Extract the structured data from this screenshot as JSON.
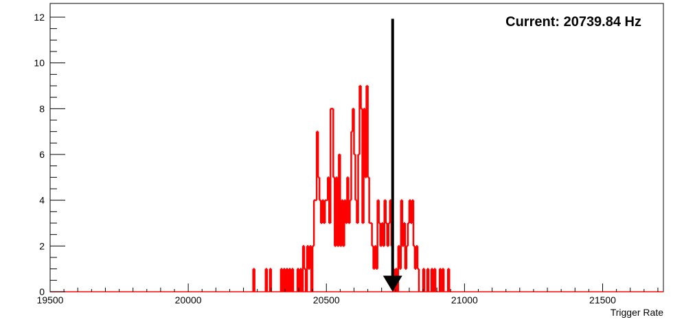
{
  "chart_data": {
    "type": "histogram",
    "title": "",
    "xlabel": "Trigger Rate",
    "ylabel": "",
    "xlim": [
      19500,
      21720
    ],
    "ylim": [
      0,
      12.6
    ],
    "x_ticks": [
      19500,
      20000,
      20500,
      21000,
      21500
    ],
    "y_ticks": [
      0,
      2,
      4,
      6,
      8,
      10,
      12
    ],
    "bin_width": 5,
    "grid": false,
    "line_color": "#ff0000",
    "annotation": "Current: 20739.84 Hz",
    "current_value": 20739.84,
    "arrow_color": "#000000",
    "bins": [
      {
        "x": 20235,
        "y": 1
      },
      {
        "x": 20280,
        "y": 1
      },
      {
        "x": 20295,
        "y": 1
      },
      {
        "x": 20335,
        "y": 1
      },
      {
        "x": 20345,
        "y": 1
      },
      {
        "x": 20355,
        "y": 1
      },
      {
        "x": 20365,
        "y": 1
      },
      {
        "x": 20375,
        "y": 1
      },
      {
        "x": 20395,
        "y": 1
      },
      {
        "x": 20405,
        "y": 1
      },
      {
        "x": 20415,
        "y": 2
      },
      {
        "x": 20420,
        "y": 1
      },
      {
        "x": 20430,
        "y": 2
      },
      {
        "x": 20435,
        "y": 1
      },
      {
        "x": 20440,
        "y": 2
      },
      {
        "x": 20450,
        "y": 2
      },
      {
        "x": 20455,
        "y": 4
      },
      {
        "x": 20460,
        "y": 4
      },
      {
        "x": 20465,
        "y": 7
      },
      {
        "x": 20470,
        "y": 5
      },
      {
        "x": 20475,
        "y": 4
      },
      {
        "x": 20480,
        "y": 3
      },
      {
        "x": 20485,
        "y": 4
      },
      {
        "x": 20490,
        "y": 3
      },
      {
        "x": 20495,
        "y": 4
      },
      {
        "x": 20500,
        "y": 4
      },
      {
        "x": 20505,
        "y": 5
      },
      {
        "x": 20510,
        "y": 3
      },
      {
        "x": 20515,
        "y": 8
      },
      {
        "x": 20520,
        "y": 8
      },
      {
        "x": 20525,
        "y": 5
      },
      {
        "x": 20530,
        "y": 2
      },
      {
        "x": 20535,
        "y": 5
      },
      {
        "x": 20540,
        "y": 2
      },
      {
        "x": 20545,
        "y": 6
      },
      {
        "x": 20550,
        "y": 2
      },
      {
        "x": 20555,
        "y": 4
      },
      {
        "x": 20560,
        "y": 2
      },
      {
        "x": 20565,
        "y": 4
      },
      {
        "x": 20570,
        "y": 3
      },
      {
        "x": 20575,
        "y": 5
      },
      {
        "x": 20580,
        "y": 3
      },
      {
        "x": 20585,
        "y": 4
      },
      {
        "x": 20590,
        "y": 7
      },
      {
        "x": 20595,
        "y": 8
      },
      {
        "x": 20600,
        "y": 6
      },
      {
        "x": 20605,
        "y": 4
      },
      {
        "x": 20610,
        "y": 3
      },
      {
        "x": 20615,
        "y": 6
      },
      {
        "x": 20620,
        "y": 9
      },
      {
        "x": 20625,
        "y": 8
      },
      {
        "x": 20630,
        "y": 3
      },
      {
        "x": 20635,
        "y": 8
      },
      {
        "x": 20640,
        "y": 5
      },
      {
        "x": 20645,
        "y": 9
      },
      {
        "x": 20650,
        "y": 5
      },
      {
        "x": 20655,
        "y": 3
      },
      {
        "x": 20660,
        "y": 3
      },
      {
        "x": 20665,
        "y": 2
      },
      {
        "x": 20670,
        "y": 1
      },
      {
        "x": 20675,
        "y": 2
      },
      {
        "x": 20680,
        "y": 1
      },
      {
        "x": 20685,
        "y": 4
      },
      {
        "x": 20690,
        "y": 3
      },
      {
        "x": 20695,
        "y": 2
      },
      {
        "x": 20700,
        "y": 3
      },
      {
        "x": 20705,
        "y": 2
      },
      {
        "x": 20710,
        "y": 4
      },
      {
        "x": 20715,
        "y": 3
      },
      {
        "x": 20720,
        "y": 2
      },
      {
        "x": 20725,
        "y": 3
      },
      {
        "x": 20730,
        "y": 4
      },
      {
        "x": 20735,
        "y": 2
      },
      {
        "x": 20740,
        "y": 1
      },
      {
        "x": 20750,
        "y": 1
      },
      {
        "x": 20760,
        "y": 2
      },
      {
        "x": 20765,
        "y": 1
      },
      {
        "x": 20770,
        "y": 4
      },
      {
        "x": 20775,
        "y": 2
      },
      {
        "x": 20780,
        "y": 3
      },
      {
        "x": 20785,
        "y": 1
      },
      {
        "x": 20790,
        "y": 2
      },
      {
        "x": 20795,
        "y": 3
      },
      {
        "x": 20800,
        "y": 4
      },
      {
        "x": 20805,
        "y": 3
      },
      {
        "x": 20810,
        "y": 4
      },
      {
        "x": 20815,
        "y": 2
      },
      {
        "x": 20820,
        "y": 1
      },
      {
        "x": 20825,
        "y": 2
      },
      {
        "x": 20830,
        "y": 1
      },
      {
        "x": 20850,
        "y": 1
      },
      {
        "x": 20865,
        "y": 1
      },
      {
        "x": 20880,
        "y": 1
      },
      {
        "x": 20890,
        "y": 1
      },
      {
        "x": 20910,
        "y": 1
      },
      {
        "x": 20920,
        "y": 1
      },
      {
        "x": 20940,
        "y": 1
      }
    ]
  }
}
